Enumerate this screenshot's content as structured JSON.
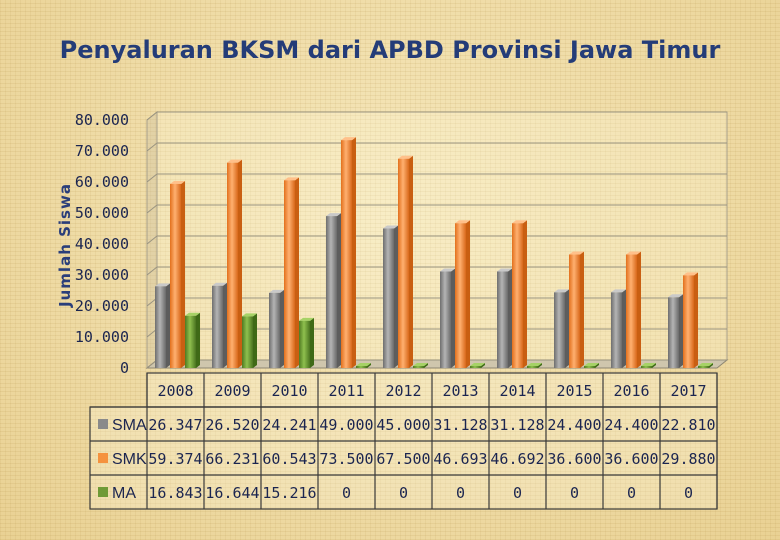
{
  "chart_data": {
    "type": "bar",
    "title": "Penyaluran BKSM dari APBD Provinsi Jawa Timur",
    "ylabel": "Jumlah Siswa",
    "xlabel": "",
    "categories": [
      "2008",
      "2009",
      "2010",
      "2011",
      "2012",
      "2013",
      "2014",
      "2015",
      "2016",
      "2017"
    ],
    "ylim": [
      0,
      80000
    ],
    "yticks": [
      0,
      10000,
      20000,
      30000,
      40000,
      50000,
      60000,
      70000,
      80000
    ],
    "ytick_labels": [
      "0",
      "10.000",
      "20.000",
      "30.000",
      "40.000",
      "50.000",
      "60.000",
      "70.000",
      "80.000"
    ],
    "grid": true,
    "style": "3d-clustered-bar",
    "legend": "data-table-below",
    "series": [
      {
        "name": "SMA",
        "color": "#8a8a8a",
        "values": [
          26347,
          26520,
          24241,
          49000,
          45000,
          31128,
          31128,
          24400,
          24400,
          22810
        ],
        "labels": [
          "26.347",
          "26.520",
          "24.241",
          "49.000",
          "45.000",
          "31.128",
          "31.128",
          "24.400",
          "24.400",
          "22.810"
        ]
      },
      {
        "name": "SMK",
        "color": "#f5923e",
        "values": [
          59374,
          66231,
          60543,
          73500,
          67500,
          46693,
          46692,
          36600,
          36600,
          29880
        ],
        "labels": [
          "59.374",
          "66.231",
          "60.543",
          "73.500",
          "67.500",
          "46.693",
          "46.692",
          "36.600",
          "36.600",
          "29.880"
        ]
      },
      {
        "name": "MA",
        "color": "#6f9a36",
        "values": [
          16843,
          16644,
          15216,
          0,
          0,
          0,
          0,
          0,
          0,
          0
        ],
        "labels": [
          "16.843",
          "16.644",
          "15.216",
          "0",
          "0",
          "0",
          "0",
          "0",
          "0",
          "0"
        ]
      }
    ]
  }
}
